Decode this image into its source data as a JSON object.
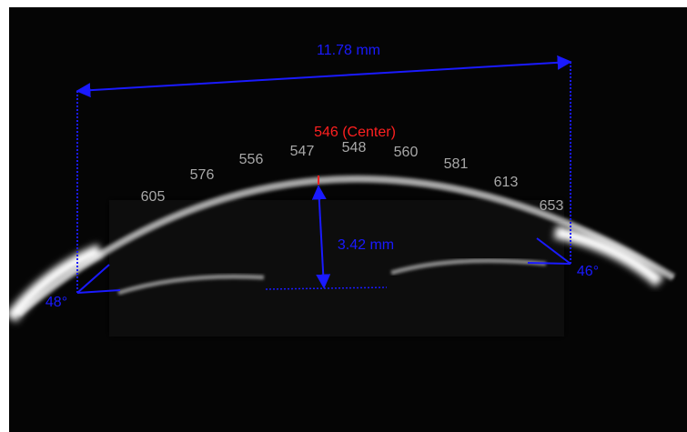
{
  "annotations": {
    "width": "11.78 mm",
    "depth": "3.42 mm",
    "center": "546 (Center)",
    "thickness": [
      605,
      576,
      556,
      547,
      548,
      560,
      581,
      613,
      653
    ],
    "angle_left": "48°",
    "angle_right": "46°"
  }
}
